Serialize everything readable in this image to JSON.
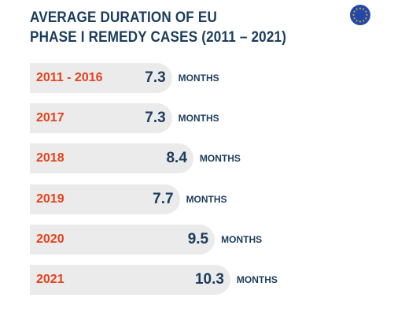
{
  "header": {
    "title_line1": "AVERAGE DURATION OF EU",
    "title_line2": "PHASE I REMEDY CASES (2011 – 2021)"
  },
  "icons": {
    "flag": "eu-flag-icon"
  },
  "colors": {
    "title": "#1b3c5c",
    "category": "#e4421c",
    "value": "#1b3c5c",
    "bar": "#ebebeb",
    "flag_blue": "#2348a8",
    "flag_stars": "#ffcc00"
  },
  "chart_data": {
    "type": "bar",
    "orientation": "horizontal",
    "categories": [
      "2011 - 2016",
      "2017",
      "2018",
      "2019",
      "2020",
      "2021"
    ],
    "values": [
      7.3,
      7.3,
      8.4,
      7.7,
      9.5,
      10.3
    ],
    "value_labels": [
      "7.3",
      "7.3",
      "8.4",
      "7.7",
      "9.5",
      "10.3"
    ],
    "unit": "MONTHS",
    "title": "AVERAGE DURATION OF EU PHASE I REMEDY CASES (2011 – 2021)",
    "xlabel": "",
    "ylabel": "",
    "grid": false,
    "legend": "none"
  }
}
